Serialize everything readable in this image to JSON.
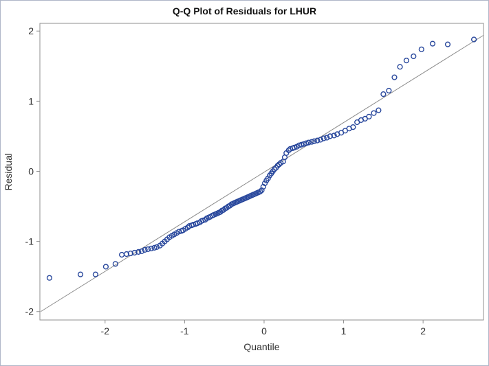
{
  "figure": {
    "title": "Q-Q Plot of Residuals for LHUR"
  },
  "chart_data": {
    "type": "scatter",
    "title": "Q-Q Plot of Residuals for LHUR",
    "xlabel": "Quantile",
    "ylabel": "Residual",
    "xlim": [
      -2.82,
      2.76
    ],
    "ylim": [
      -2.12,
      2.11
    ],
    "xticks": [
      -2,
      -1,
      0,
      1,
      2
    ],
    "yticks": [
      -2,
      -1,
      0,
      1,
      2
    ],
    "grid": false,
    "legend": null,
    "marker": {
      "shape": "open-circle",
      "color": "#28479c",
      "radius": 3.4,
      "stroke_width": 1.4
    },
    "reference_line": {
      "x1": -2.81,
      "y1": -2.0,
      "x2": 2.76,
      "y2": 1.94,
      "color": "#8c8c8c"
    },
    "frame_color": "#8f8f8f",
    "tick_label_color": "#2e2e2e",
    "points": [
      [
        -2.7,
        -1.52
      ],
      [
        -2.31,
        -1.47
      ],
      [
        -2.12,
        -1.47
      ],
      [
        -1.99,
        -1.36
      ],
      [
        -1.87,
        -1.32
      ],
      [
        -1.79,
        -1.19
      ],
      [
        -1.73,
        -1.18
      ],
      [
        -1.68,
        -1.17
      ],
      [
        -1.63,
        -1.16
      ],
      [
        -1.58,
        -1.15
      ],
      [
        -1.54,
        -1.14
      ],
      [
        -1.5,
        -1.12
      ],
      [
        -1.46,
        -1.11
      ],
      [
        -1.42,
        -1.1
      ],
      [
        -1.38,
        -1.09
      ],
      [
        -1.35,
        -1.08
      ],
      [
        -1.31,
        -1.06
      ],
      [
        -1.28,
        -1.03
      ],
      [
        -1.25,
        -1.0
      ],
      [
        -1.22,
        -0.97
      ],
      [
        -1.19,
        -0.94
      ],
      [
        -1.16,
        -0.92
      ],
      [
        -1.13,
        -0.9
      ],
      [
        -1.1,
        -0.88
      ],
      [
        -1.07,
        -0.86
      ],
      [
        -1.04,
        -0.85
      ],
      [
        -1.02,
        -0.84
      ],
      [
        -0.99,
        -0.82
      ],
      [
        -0.96,
        -0.8
      ],
      [
        -0.94,
        -0.78
      ],
      [
        -0.91,
        -0.77
      ],
      [
        -0.89,
        -0.76
      ],
      [
        -0.86,
        -0.75
      ],
      [
        -0.84,
        -0.74
      ],
      [
        -0.81,
        -0.73
      ],
      [
        -0.79,
        -0.71
      ],
      [
        -0.77,
        -0.7
      ],
      [
        -0.74,
        -0.69
      ],
      [
        -0.72,
        -0.67
      ],
      [
        -0.7,
        -0.66
      ],
      [
        -0.68,
        -0.65
      ],
      [
        -0.65,
        -0.63
      ],
      [
        -0.63,
        -0.62
      ],
      [
        -0.61,
        -0.61
      ],
      [
        -0.59,
        -0.6
      ],
      [
        -0.57,
        -0.59
      ],
      [
        -0.55,
        -0.58
      ],
      [
        -0.53,
        -0.56
      ],
      [
        -0.51,
        -0.55
      ],
      [
        -0.49,
        -0.53
      ],
      [
        -0.47,
        -0.52
      ],
      [
        -0.45,
        -0.5
      ],
      [
        -0.43,
        -0.49
      ],
      [
        -0.41,
        -0.47
      ],
      [
        -0.39,
        -0.46
      ],
      [
        -0.37,
        -0.45
      ],
      [
        -0.35,
        -0.44
      ],
      [
        -0.33,
        -0.43
      ],
      [
        -0.31,
        -0.42
      ],
      [
        -0.29,
        -0.41
      ],
      [
        -0.27,
        -0.4
      ],
      [
        -0.25,
        -0.39
      ],
      [
        -0.23,
        -0.38
      ],
      [
        -0.21,
        -0.37
      ],
      [
        -0.19,
        -0.36
      ],
      [
        -0.17,
        -0.35
      ],
      [
        -0.15,
        -0.34
      ],
      [
        -0.13,
        -0.33
      ],
      [
        -0.11,
        -0.32
      ],
      [
        -0.09,
        -0.31
      ],
      [
        -0.07,
        -0.3
      ],
      [
        -0.05,
        -0.29
      ],
      [
        -0.03,
        -0.27
      ],
      [
        -0.01,
        -0.22
      ],
      [
        0.01,
        -0.17
      ],
      [
        0.03,
        -0.13
      ],
      [
        0.05,
        -0.1
      ],
      [
        0.07,
        -0.06
      ],
      [
        0.09,
        -0.03
      ],
      [
        0.11,
        0.0
      ],
      [
        0.13,
        0.03
      ],
      [
        0.15,
        0.05
      ],
      [
        0.17,
        0.08
      ],
      [
        0.19,
        0.1
      ],
      [
        0.21,
        0.12
      ],
      [
        0.24,
        0.14
      ],
      [
        0.26,
        0.2
      ],
      [
        0.28,
        0.26
      ],
      [
        0.31,
        0.3
      ],
      [
        0.33,
        0.32
      ],
      [
        0.36,
        0.33
      ],
      [
        0.38,
        0.34
      ],
      [
        0.41,
        0.35
      ],
      [
        0.44,
        0.37
      ],
      [
        0.47,
        0.38
      ],
      [
        0.5,
        0.39
      ],
      [
        0.53,
        0.4
      ],
      [
        0.56,
        0.41
      ],
      [
        0.6,
        0.42
      ],
      [
        0.63,
        0.43
      ],
      [
        0.67,
        0.44
      ],
      [
        0.71,
        0.45
      ],
      [
        0.75,
        0.47
      ],
      [
        0.79,
        0.48
      ],
      [
        0.83,
        0.5
      ],
      [
        0.88,
        0.51
      ],
      [
        0.92,
        0.53
      ],
      [
        0.97,
        0.55
      ],
      [
        1.02,
        0.58
      ],
      [
        1.07,
        0.61
      ],
      [
        1.12,
        0.63
      ],
      [
        1.17,
        0.7
      ],
      [
        1.22,
        0.73
      ],
      [
        1.27,
        0.75
      ],
      [
        1.32,
        0.78
      ],
      [
        1.38,
        0.83
      ],
      [
        1.44,
        0.87
      ],
      [
        1.5,
        1.1
      ],
      [
        1.57,
        1.15
      ],
      [
        1.64,
        1.34
      ],
      [
        1.71,
        1.49
      ],
      [
        1.79,
        1.58
      ],
      [
        1.88,
        1.64
      ],
      [
        1.98,
        1.74
      ],
      [
        2.12,
        1.82
      ],
      [
        2.31,
        1.81
      ],
      [
        2.64,
        1.88
      ]
    ]
  }
}
